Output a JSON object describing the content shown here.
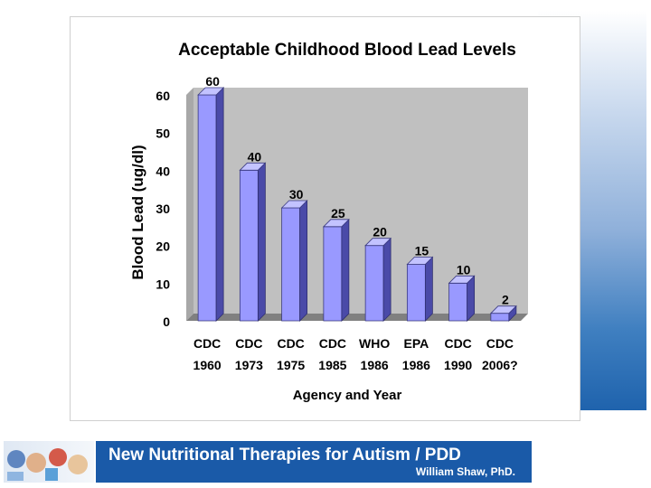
{
  "chart_data": {
    "type": "bar",
    "title": "Acceptable Childhood Blood Lead Levels",
    "xlabel": "Agency and Year",
    "ylabel": "Blood Lead (ug/dl)",
    "categories": [
      [
        "CDC",
        "1960"
      ],
      [
        "CDC",
        "1973"
      ],
      [
        "CDC",
        "1975"
      ],
      [
        "CDC",
        "1985"
      ],
      [
        "WHO",
        "1986"
      ],
      [
        "EPA",
        "1986"
      ],
      [
        "CDC",
        "1990"
      ],
      [
        "CDC",
        "2006?"
      ]
    ],
    "values": [
      60,
      40,
      30,
      25,
      20,
      15,
      10,
      2
    ],
    "data_labels": [
      "60",
      "40",
      "30",
      "25",
      "20",
      "15",
      "10",
      "2"
    ],
    "yticks": [
      0,
      10,
      20,
      30,
      40,
      50,
      60
    ],
    "ylim": [
      0,
      60
    ],
    "grid": false,
    "legend": "none",
    "colors": {
      "bar_front": "#9999ff",
      "bar_side": "#4a4aa8",
      "bar_top": "#c3c3ff",
      "wall": "#c0c0c0",
      "floor": "#808080"
    }
  },
  "footer": {
    "title": "New Nutritional Therapies for Autism / PDD",
    "author": "William Shaw, PhD."
  },
  "logo": {
    "icon": "collage-logo-icon"
  }
}
